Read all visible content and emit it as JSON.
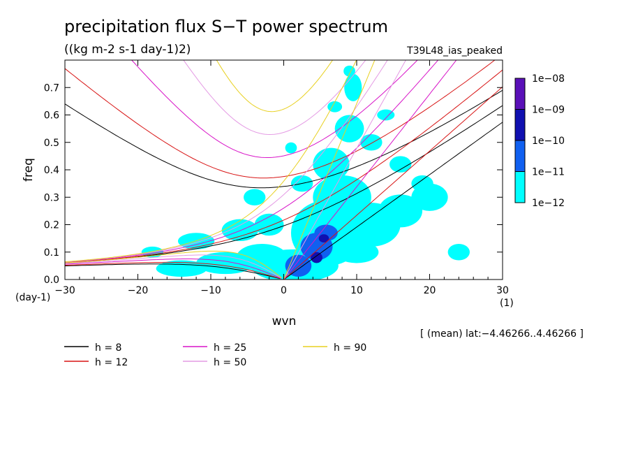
{
  "chart_data": {
    "type": "heatmap",
    "title": "precipitation flux S−T power spectrum",
    "subtitle": "((kg m-2 s-1 day-1)2)",
    "run_label": "T39L48_ias_peaked",
    "xlabel": "wvn",
    "ylabel": "freq",
    "x_unit": "(1)",
    "y_unit": "(day-1)",
    "xlim": [
      -30,
      30
    ],
    "ylim": [
      0,
      0.8
    ],
    "x_ticks": [
      -30,
      -20,
      -10,
      0,
      10,
      20,
      30
    ],
    "x_tick_labels": [
      "−30",
      "−20",
      "−10",
      "0",
      "10",
      "20",
      "30"
    ],
    "y_ticks": [
      0,
      0.1,
      0.2,
      0.3,
      0.4,
      0.5,
      0.6,
      0.7
    ],
    "y_tick_labels": [
      "0.0",
      "0.1",
      "0.2",
      "0.3",
      "0.4",
      "0.5",
      "0.6",
      "0.7"
    ],
    "note": "[ (mean) lat:−4.46266..4.46266 ]",
    "colorbar": {
      "labels": [
        "1e−08",
        "1e−09",
        "1e−10",
        "1e−11",
        "1e−12"
      ],
      "colors": [
        "#5a10b8",
        "#1010b0",
        "#1060f0",
        "#00ffff"
      ]
    },
    "dispersion_curves": [
      {
        "name": "h =  8",
        "h": 8,
        "color": "#000000"
      },
      {
        "name": "h = 12",
        "h": 12,
        "color": "#d81414"
      },
      {
        "name": "h = 25",
        "h": 25,
        "color": "#d814c8"
      },
      {
        "name": "h = 50",
        "h": 50,
        "color": "#e49ae4"
      },
      {
        "name": "h = 90",
        "h": 90,
        "color": "#e8d020"
      }
    ],
    "spectral_blobs": [
      {
        "k": 2.0,
        "f": 0.05,
        "rk": 1.8,
        "rf": 0.04,
        "level": 1
      },
      {
        "k": 4.5,
        "f": 0.12,
        "rk": 2.2,
        "rf": 0.05,
        "level": 1
      },
      {
        "k": 5.8,
        "f": 0.17,
        "rk": 1.6,
        "rf": 0.03,
        "level": 1
      },
      {
        "k": 4.5,
        "f": 0.08,
        "rk": 0.8,
        "rf": 0.02,
        "level": 2
      },
      {
        "k": 5.5,
        "f": 0.15,
        "rk": 0.7,
        "rf": 0.015,
        "level": 2
      },
      {
        "k": 1.5,
        "f": 0.05,
        "rk": 6.0,
        "rf": 0.06,
        "level": 0
      },
      {
        "k": 6.0,
        "f": 0.17,
        "rk": 5.0,
        "rf": 0.12,
        "level": 0
      },
      {
        "k": 8.0,
        "f": 0.3,
        "rk": 4.0,
        "rf": 0.08,
        "level": 0
      },
      {
        "k": 6.5,
        "f": 0.42,
        "rk": 2.5,
        "rf": 0.06,
        "level": 0
      },
      {
        "k": 9.0,
        "f": 0.55,
        "rk": 2.0,
        "rf": 0.05,
        "level": 0
      },
      {
        "k": 9.5,
        "f": 0.7,
        "rk": 1.2,
        "rf": 0.05,
        "level": 0
      },
      {
        "k": 12.0,
        "f": 0.2,
        "rk": 4.0,
        "rf": 0.08,
        "level": 0
      },
      {
        "k": 16.0,
        "f": 0.25,
        "rk": 3.0,
        "rf": 0.06,
        "level": 0
      },
      {
        "k": 20.0,
        "f": 0.3,
        "rk": 2.5,
        "rf": 0.05,
        "level": 0
      },
      {
        "k": -3.0,
        "f": 0.08,
        "rk": 3.5,
        "rf": 0.05,
        "level": 0
      },
      {
        "k": -8.0,
        "f": 0.06,
        "rk": 4.0,
        "rf": 0.04,
        "level": 0
      },
      {
        "k": -14.0,
        "f": 0.04,
        "rk": 3.5,
        "rf": 0.03,
        "level": 0
      },
      {
        "k": -2.0,
        "f": 0.2,
        "rk": 2.0,
        "rf": 0.04,
        "level": 0
      },
      {
        "k": -6.0,
        "f": 0.18,
        "rk": 2.5,
        "rf": 0.04,
        "level": 0
      },
      {
        "k": -12.0,
        "f": 0.14,
        "rk": 2.5,
        "rf": 0.03,
        "level": 0
      },
      {
        "k": -4.0,
        "f": 0.3,
        "rk": 1.5,
        "rf": 0.03,
        "level": 0
      },
      {
        "k": 2.5,
        "f": 0.35,
        "rk": 1.5,
        "rf": 0.03,
        "level": 0
      },
      {
        "k": 1.0,
        "f": 0.48,
        "rk": 0.8,
        "rf": 0.02,
        "level": 0
      },
      {
        "k": 12.0,
        "f": 0.5,
        "rk": 1.5,
        "rf": 0.03,
        "level": 0
      },
      {
        "k": 14.0,
        "f": 0.6,
        "rk": 1.2,
        "rf": 0.02,
        "level": 0
      },
      {
        "k": 16.0,
        "f": 0.42,
        "rk": 1.5,
        "rf": 0.03,
        "level": 0
      },
      {
        "k": 19.0,
        "f": 0.35,
        "rk": 1.5,
        "rf": 0.03,
        "level": 0
      },
      {
        "k": 24.0,
        "f": 0.1,
        "rk": 1.5,
        "rf": 0.03,
        "level": 0
      },
      {
        "k": 10.0,
        "f": 0.1,
        "rk": 3.0,
        "rf": 0.04,
        "level": 0
      },
      {
        "k": -18.0,
        "f": 0.1,
        "rk": 1.5,
        "rf": 0.02,
        "level": 0
      },
      {
        "k": 7.0,
        "f": 0.63,
        "rk": 1.0,
        "rf": 0.02,
        "level": 0
      },
      {
        "k": 9.0,
        "f": 0.76,
        "rk": 0.8,
        "rf": 0.02,
        "level": 0
      }
    ]
  }
}
